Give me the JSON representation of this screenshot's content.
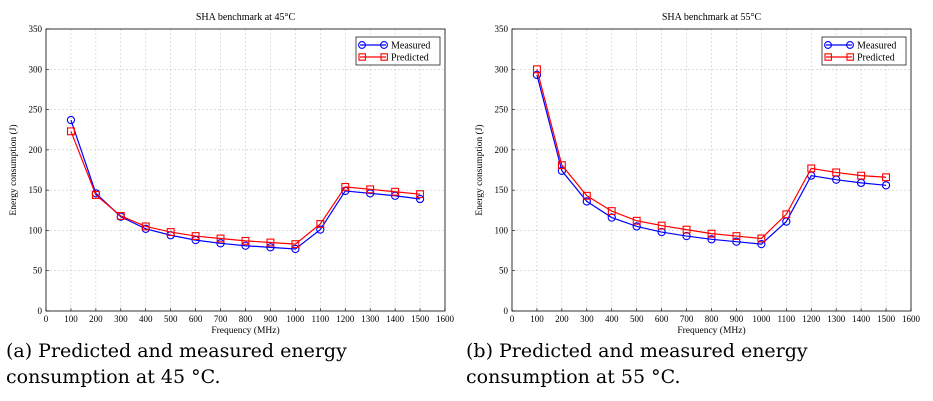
{
  "chart_data": [
    {
      "type": "line",
      "title": "SHA benchmark at 45°C",
      "xlabel": "Frequency (MHz)",
      "ylabel": "Energy consumption (J)",
      "xlim": [
        0,
        1600
      ],
      "ylim": [
        0,
        350
      ],
      "xticks": [
        0,
        100,
        200,
        300,
        400,
        500,
        600,
        700,
        800,
        900,
        1000,
        1100,
        1200,
        1300,
        1400,
        1500,
        1600
      ],
      "yticks": [
        0,
        50,
        100,
        150,
        200,
        250,
        300,
        350
      ],
      "grid": true,
      "legend_position": "top-right",
      "x": [
        100,
        200,
        300,
        400,
        500,
        600,
        700,
        800,
        900,
        1000,
        1100,
        1200,
        1300,
        1400,
        1500
      ],
      "series": [
        {
          "name": "Measured",
          "color": "#0000ff",
          "marker": "circle",
          "values": [
            237,
            146,
            117,
            102,
            94,
            88,
            84,
            81,
            79,
            77,
            101,
            149,
            146,
            143,
            139
          ]
        },
        {
          "name": "Predicted",
          "color": "#ff0000",
          "marker": "square",
          "values": [
            223,
            144,
            118,
            105,
            98,
            93,
            90,
            87,
            85,
            83,
            108,
            154,
            151,
            148,
            145
          ]
        }
      ]
    },
    {
      "type": "line",
      "title": "SHA benchmark at 55°C",
      "xlabel": "Frequency (MHz)",
      "ylabel": "Energy consumption (J)",
      "xlim": [
        0,
        1600
      ],
      "ylim": [
        0,
        350
      ],
      "xticks": [
        0,
        100,
        200,
        300,
        400,
        500,
        600,
        700,
        800,
        900,
        1000,
        1100,
        1200,
        1300,
        1400,
        1500,
        1600
      ],
      "yticks": [
        0,
        50,
        100,
        150,
        200,
        250,
        300,
        350
      ],
      "grid": true,
      "legend_position": "top-right",
      "x": [
        100,
        200,
        300,
        400,
        500,
        600,
        700,
        800,
        900,
        1000,
        1100,
        1200,
        1300,
        1400,
        1500
      ],
      "series": [
        {
          "name": "Measured",
          "color": "#0000ff",
          "marker": "circle",
          "values": [
            293,
            174,
            136,
            116,
            105,
            98,
            93,
            89,
            86,
            83,
            111,
            168,
            163,
            159,
            156
          ]
        },
        {
          "name": "Predicted",
          "color": "#ff0000",
          "marker": "square",
          "values": [
            300,
            181,
            143,
            124,
            112,
            106,
            101,
            96,
            93,
            90,
            120,
            177,
            172,
            168,
            166
          ]
        }
      ]
    }
  ],
  "captions": [
    {
      "label": "(a)",
      "text": "Predicted and measured energy consumption at 45 °C."
    },
    {
      "label": "(b)",
      "text": "Predicted and measured energy consumption at 55 °C."
    }
  ]
}
